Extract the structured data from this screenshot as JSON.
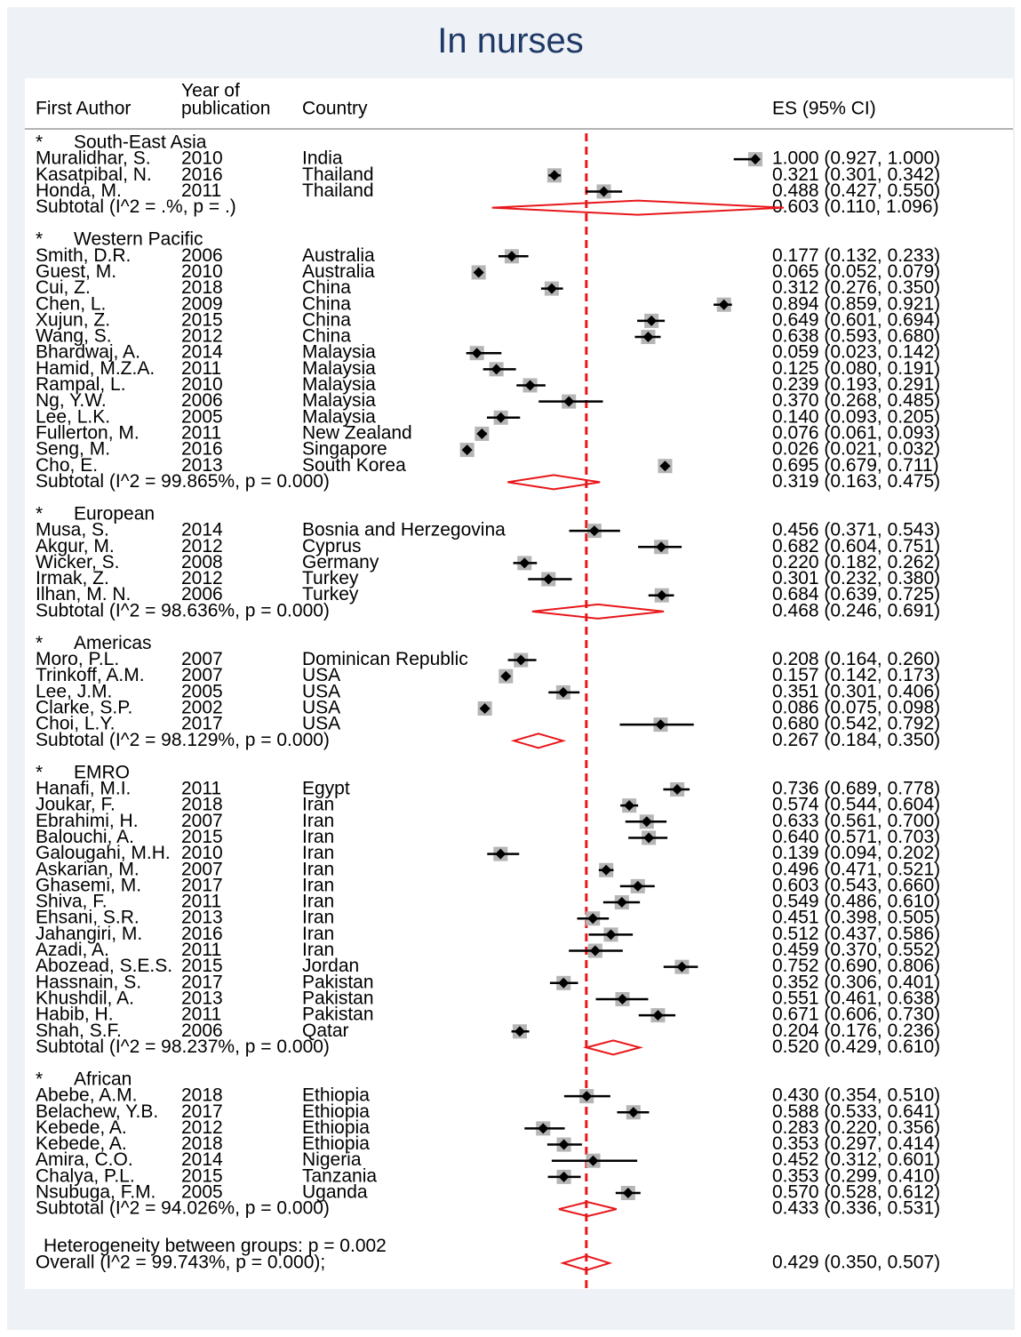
{
  "title": "In nurses",
  "columns": {
    "author": "First Author",
    "year_line1": "Year of",
    "year_line2": "publication",
    "country": "Country",
    "es": "ES (95% CI)"
  },
  "colors": {
    "title": "#1f3a66",
    "diamond": "#e8171b",
    "reference_line": "#e8171b",
    "point": "#000000",
    "weight_box": "#b5b5b5"
  },
  "chart_data": {
    "type": "forest",
    "xlabel": "",
    "xlim": [
      0,
      1
    ],
    "ticks": [
      {
        "value": 0,
        "label": "0"
      },
      {
        "value": 0.25,
        "label": ".25"
      },
      {
        "value": 0.5,
        "label": ".5"
      },
      {
        "value": 0.75,
        "label": ".75"
      },
      {
        "value": 1,
        "label": "1"
      }
    ],
    "reference_line": 0.429,
    "groups": [
      {
        "name": "South-East Asia",
        "studies": [
          {
            "author": "Muralidhar, S.",
            "year": "2010",
            "country": "India",
            "es": 1.0,
            "lo": 0.927,
            "hi": 1.0,
            "es_text": "1.000 (0.927, 1.000)"
          },
          {
            "author": "Kasatpibal, N.",
            "year": "2016",
            "country": "Thailand",
            "es": 0.321,
            "lo": 0.301,
            "hi": 0.342,
            "es_text": "0.321 (0.301, 0.342)"
          },
          {
            "author": "Honda, M.",
            "year": "2011",
            "country": "Thailand",
            "es": 0.488,
            "lo": 0.427,
            "hi": 0.55,
            "es_text": "0.488 (0.427, 0.550)"
          }
        ],
        "subtotal": {
          "label": "Subtotal  (I^2 = .%, p = .)",
          "es": 0.603,
          "lo": 0.11,
          "hi": 1.096,
          "es_text": "0.603 (0.110, 1.096)"
        }
      },
      {
        "name": "Western Pacific",
        "studies": [
          {
            "author": "Smith, D.R.",
            "year": "2006",
            "country": "Australia",
            "es": 0.177,
            "lo": 0.132,
            "hi": 0.233,
            "es_text": "0.177 (0.132, 0.233)"
          },
          {
            "author": "Guest, M.",
            "year": "2010",
            "country": "Australia",
            "es": 0.065,
            "lo": 0.052,
            "hi": 0.079,
            "es_text": "0.065 (0.052, 0.079)"
          },
          {
            "author": "Cui, Z.",
            "year": "2018",
            "country": "China",
            "es": 0.312,
            "lo": 0.276,
            "hi": 0.35,
            "es_text": "0.312 (0.276, 0.350)"
          },
          {
            "author": "Chen, L.",
            "year": "2009",
            "country": "China",
            "es": 0.894,
            "lo": 0.859,
            "hi": 0.921,
            "es_text": "0.894 (0.859, 0.921)"
          },
          {
            "author": "Xujun, Z.",
            "year": "2015",
            "country": "China",
            "es": 0.649,
            "lo": 0.601,
            "hi": 0.694,
            "es_text": "0.649 (0.601, 0.694)"
          },
          {
            "author": "Wang, S.",
            "year": "2012",
            "country": "China",
            "es": 0.638,
            "lo": 0.593,
            "hi": 0.68,
            "es_text": "0.638 (0.593, 0.680)"
          },
          {
            "author": "Bhardwaj, A.",
            "year": "2014",
            "country": "Malaysia",
            "es": 0.059,
            "lo": 0.023,
            "hi": 0.142,
            "es_text": "0.059 (0.023, 0.142)"
          },
          {
            "author": "Hamid, M.Z.A.",
            "year": "2011",
            "country": "Malaysia",
            "es": 0.125,
            "lo": 0.08,
            "hi": 0.191,
            "es_text": "0.125 (0.080, 0.191)"
          },
          {
            "author": "Rampal, L.",
            "year": "2010",
            "country": "Malaysia",
            "es": 0.239,
            "lo": 0.193,
            "hi": 0.291,
            "es_text": "0.239 (0.193, 0.291)"
          },
          {
            "author": "Ng, Y.W.",
            "year": "2006",
            "country": "Malaysia",
            "es": 0.37,
            "lo": 0.268,
            "hi": 0.485,
            "es_text": "0.370 (0.268, 0.485)"
          },
          {
            "author": "Lee, L.K.",
            "year": "2005",
            "country": "Malaysia",
            "es": 0.14,
            "lo": 0.093,
            "hi": 0.205,
            "es_text": "0.140 (0.093, 0.205)"
          },
          {
            "author": "Fullerton, M.",
            "year": "2011",
            "country": "New Zealand",
            "es": 0.076,
            "lo": 0.061,
            "hi": 0.093,
            "es_text": "0.076 (0.061, 0.093)"
          },
          {
            "author": "Seng, M.",
            "year": "2016",
            "country": "Singapore",
            "es": 0.026,
            "lo": 0.021,
            "hi": 0.032,
            "es_text": "0.026 (0.021, 0.032)"
          },
          {
            "author": "Cho, E.",
            "year": "2013",
            "country": "South Korea",
            "es": 0.695,
            "lo": 0.679,
            "hi": 0.711,
            "es_text": "0.695 (0.679, 0.711)"
          }
        ],
        "subtotal": {
          "label": "Subtotal  (I^2 = 99.865%, p = 0.000)",
          "es": 0.319,
          "lo": 0.163,
          "hi": 0.475,
          "es_text": "0.319 (0.163, 0.475)"
        }
      },
      {
        "name": "European",
        "studies": [
          {
            "author": "Musa, S.",
            "year": "2014",
            "country": "Bosnia and Herzegovina",
            "es": 0.456,
            "lo": 0.371,
            "hi": 0.543,
            "es_text": "0.456 (0.371, 0.543)"
          },
          {
            "author": "Akgur, M.",
            "year": "2012",
            "country": "Cyprus",
            "es": 0.682,
            "lo": 0.604,
            "hi": 0.751,
            "es_text": "0.682 (0.604, 0.751)"
          },
          {
            "author": "Wicker, S.",
            "year": "2008",
            "country": "Germany",
            "es": 0.22,
            "lo": 0.182,
            "hi": 0.262,
            "es_text": "0.220 (0.182, 0.262)"
          },
          {
            "author": "Irmak, Z.",
            "year": "2012",
            "country": "Turkey",
            "es": 0.301,
            "lo": 0.232,
            "hi": 0.38,
            "es_text": "0.301 (0.232, 0.380)"
          },
          {
            "author": "Ilhan, M. N.",
            "year": "2006",
            "country": "Turkey",
            "es": 0.684,
            "lo": 0.639,
            "hi": 0.725,
            "es_text": "0.684 (0.639, 0.725)"
          }
        ],
        "subtotal": {
          "label": "Subtotal  (I^2 = 98.636%, p = 0.000)",
          "es": 0.468,
          "lo": 0.246,
          "hi": 0.691,
          "es_text": "0.468 (0.246, 0.691)"
        }
      },
      {
        "name": "Americas",
        "studies": [
          {
            "author": "Moro, P.L.",
            "year": "2007",
            "country": "Dominican Republic",
            "es": 0.208,
            "lo": 0.164,
            "hi": 0.26,
            "es_text": "0.208 (0.164, 0.260)"
          },
          {
            "author": "Trinkoff, A.M.",
            "year": "2007",
            "country": "USA",
            "es": 0.157,
            "lo": 0.142,
            "hi": 0.173,
            "es_text": "0.157 (0.142, 0.173)"
          },
          {
            "author": "Lee, J.M.",
            "year": "2005",
            "country": "USA",
            "es": 0.351,
            "lo": 0.301,
            "hi": 0.406,
            "es_text": "0.351 (0.301, 0.406)"
          },
          {
            "author": "Clarke, S.P.",
            "year": "2002",
            "country": "USA",
            "es": 0.086,
            "lo": 0.075,
            "hi": 0.098,
            "es_text": "0.086 (0.075, 0.098)"
          },
          {
            "author": "Choi, L.Y.",
            "year": "2017",
            "country": "USA",
            "es": 0.68,
            "lo": 0.542,
            "hi": 0.792,
            "es_text": "0.680 (0.542, 0.792)"
          }
        ],
        "subtotal": {
          "label": "Subtotal  (I^2 = 98.129%, p = 0.000)",
          "es": 0.267,
          "lo": 0.184,
          "hi": 0.35,
          "es_text": "0.267 (0.184, 0.350)"
        }
      },
      {
        "name": "EMRO",
        "studies": [
          {
            "author": "Hanafi, M.I.",
            "year": "2011",
            "country": "Egypt",
            "es": 0.736,
            "lo": 0.689,
            "hi": 0.778,
            "es_text": "0.736 (0.689, 0.778)"
          },
          {
            "author": "Joukar, F.",
            "year": "2018",
            "country": "Iran",
            "es": 0.574,
            "lo": 0.544,
            "hi": 0.604,
            "es_text": "0.574 (0.544, 0.604)"
          },
          {
            "author": "Ebrahimi, H.",
            "year": "2007",
            "country": "Iran",
            "es": 0.633,
            "lo": 0.561,
            "hi": 0.7,
            "es_text": "0.633 (0.561, 0.700)"
          },
          {
            "author": "Balouchi, A.",
            "year": "2015",
            "country": "Iran",
            "es": 0.64,
            "lo": 0.571,
            "hi": 0.703,
            "es_text": "0.640 (0.571, 0.703)"
          },
          {
            "author": "Galougahi, M.H.",
            "year": "2010",
            "country": "Iran",
            "es": 0.139,
            "lo": 0.094,
            "hi": 0.202,
            "es_text": "0.139 (0.094, 0.202)"
          },
          {
            "author": "Askarian, M.",
            "year": "2007",
            "country": "Iran",
            "es": 0.496,
            "lo": 0.471,
            "hi": 0.521,
            "es_text": "0.496 (0.471, 0.521)"
          },
          {
            "author": "Ghasemi, M.",
            "year": "2017",
            "country": "Iran",
            "es": 0.603,
            "lo": 0.543,
            "hi": 0.66,
            "es_text": "0.603 (0.543, 0.660)"
          },
          {
            "author": "Shiva, F.",
            "year": "2011",
            "country": "Iran",
            "es": 0.549,
            "lo": 0.486,
            "hi": 0.61,
            "es_text": "0.549 (0.486, 0.610)"
          },
          {
            "author": "Ehsani, S.R.",
            "year": "2013",
            "country": "Iran",
            "es": 0.451,
            "lo": 0.398,
            "hi": 0.505,
            "es_text": "0.451 (0.398, 0.505)"
          },
          {
            "author": "Jahangiri, M.",
            "year": "2016",
            "country": "Iran",
            "es": 0.512,
            "lo": 0.437,
            "hi": 0.586,
            "es_text": "0.512 (0.437, 0.586)"
          },
          {
            "author": "Azadi, A.",
            "year": "2011",
            "country": "Iran",
            "es": 0.459,
            "lo": 0.37,
            "hi": 0.552,
            "es_text": "0.459 (0.370, 0.552)"
          },
          {
            "author": "Abozead, S.E.S.",
            "year": "2015",
            "country": "Jordan",
            "es": 0.752,
            "lo": 0.69,
            "hi": 0.806,
            "es_text": "0.752 (0.690, 0.806)"
          },
          {
            "author": "Hassnain, S.",
            "year": "2017",
            "country": "Pakistan",
            "es": 0.352,
            "lo": 0.306,
            "hi": 0.401,
            "es_text": "0.352 (0.306, 0.401)"
          },
          {
            "author": "Khushdil, A.",
            "year": "2013",
            "country": "Pakistan",
            "es": 0.551,
            "lo": 0.461,
            "hi": 0.638,
            "es_text": "0.551 (0.461, 0.638)"
          },
          {
            "author": "Habib, H.",
            "year": "2011",
            "country": "Pakistan",
            "es": 0.671,
            "lo": 0.606,
            "hi": 0.73,
            "es_text": "0.671 (0.606, 0.730)"
          },
          {
            "author": "Shah, S.F.",
            "year": "2006",
            "country": "Qatar",
            "es": 0.204,
            "lo": 0.176,
            "hi": 0.236,
            "es_text": "0.204 (0.176, 0.236)"
          }
        ],
        "subtotal": {
          "label": "Subtotal  (I^2 = 98.237%, p = 0.000)",
          "es": 0.52,
          "lo": 0.429,
          "hi": 0.61,
          "es_text": "0.520 (0.429, 0.610)"
        }
      },
      {
        "name": "African",
        "studies": [
          {
            "author": "Abebe, A.M.",
            "year": "2018",
            "country": "Ethiopia",
            "es": 0.43,
            "lo": 0.354,
            "hi": 0.51,
            "es_text": "0.430 (0.354, 0.510)"
          },
          {
            "author": "Belachew, Y.B.",
            "year": "2017",
            "country": "Ethiopia",
            "es": 0.588,
            "lo": 0.533,
            "hi": 0.641,
            "es_text": "0.588 (0.533, 0.641)"
          },
          {
            "author": "Kebede, A.",
            "year": "2012",
            "country": "Ethiopia",
            "es": 0.283,
            "lo": 0.22,
            "hi": 0.356,
            "es_text": "0.283 (0.220, 0.356)"
          },
          {
            "author": "Kebede, A.",
            "year": "2018",
            "country": "Ethiopia",
            "es": 0.353,
            "lo": 0.297,
            "hi": 0.414,
            "es_text": "0.353 (0.297, 0.414)"
          },
          {
            "author": "Amira, C.O.",
            "year": "2014",
            "country": "Nigeria",
            "es": 0.452,
            "lo": 0.312,
            "hi": 0.601,
            "es_text": "0.452 (0.312, 0.601)"
          },
          {
            "author": "Chalya, P.L.",
            "year": "2015",
            "country": "Tanzania",
            "es": 0.353,
            "lo": 0.299,
            "hi": 0.41,
            "es_text": "0.353 (0.299, 0.410)"
          },
          {
            "author": "Nsubuga, F.M.",
            "year": "2005",
            "country": "Uganda",
            "es": 0.57,
            "lo": 0.528,
            "hi": 0.612,
            "es_text": "0.570 (0.528, 0.612)"
          }
        ],
        "subtotal": {
          "label": "Subtotal  (I^2 = 94.026%, p = 0.000)",
          "es": 0.433,
          "lo": 0.336,
          "hi": 0.531,
          "es_text": "0.433 (0.336, 0.531)"
        }
      }
    ],
    "heterogeneity_text": "Heterogeneity between groups: p = 0.002",
    "overall": {
      "label": "Overall  (I^2 = 99.743%, p = 0.000);",
      "es": 0.429,
      "lo": 0.35,
      "hi": 0.507,
      "es_text": "0.429 (0.350, 0.507)"
    }
  }
}
